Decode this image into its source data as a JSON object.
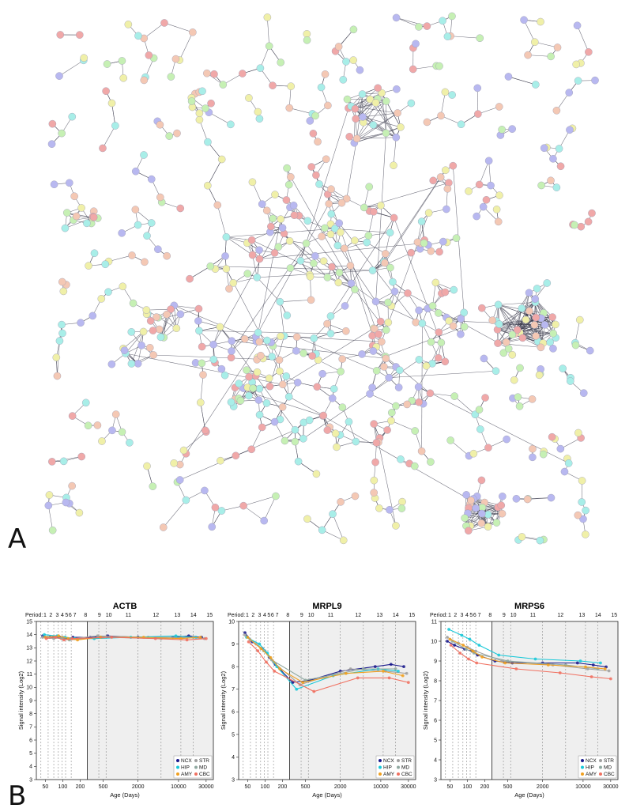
{
  "figure": {
    "panel_a_label": "A",
    "panel_b_label": "B"
  },
  "network": {
    "node_colors": [
      "#b8b8f0",
      "#a8eee8",
      "#c6f0b4",
      "#f0f0a8",
      "#f4c8b4",
      "#f0a8a8",
      "#7ec8f0"
    ]
  },
  "chart_data": [
    {
      "type": "scatter",
      "title": "ACTB",
      "xlabel": "Age (Days)",
      "ylabel": "Signal intensity (Log2)",
      "x_scale": "log",
      "xlim": [
        35,
        40000
      ],
      "ylim": [
        3,
        15
      ],
      "yticks": [
        3,
        4,
        5,
        6,
        7,
        8,
        9,
        10,
        11,
        12,
        13,
        14,
        15
      ],
      "xticks": [
        50,
        100,
        200,
        500,
        2000,
        10000,
        30000
      ],
      "period_label": "Period:",
      "periods": [
        "1",
        "2",
        "3",
        "4",
        "5",
        "6",
        "7",
        "8",
        "9",
        "10",
        "11",
        "12",
        "13",
        "14",
        "15"
      ],
      "legend": [
        "NCX",
        "STR",
        "HIP",
        "MD",
        "AMY",
        "CBC"
      ],
      "series": [
        {
          "name": "NCX",
          "color": "#1a1a8c",
          "x": [
            45,
            60,
            90,
            120,
            150,
            300,
            600,
            2000,
            8000,
            15000,
            25000
          ],
          "y": [
            13.9,
            13.8,
            13.8,
            13.7,
            13.8,
            13.8,
            13.9,
            13.8,
            13.8,
            13.9,
            13.8
          ]
        },
        {
          "name": "STR",
          "color": "#a0a0a0",
          "x": [
            45,
            70,
            100,
            140,
            400,
            3000,
            12000,
            28000
          ],
          "y": [
            13.8,
            13.7,
            13.8,
            13.7,
            13.9,
            13.8,
            13.8,
            13.7
          ]
        },
        {
          "name": "HIP",
          "color": "#18c8d8",
          "x": [
            48,
            80,
            110,
            160,
            350,
            1500,
            9000,
            20000
          ],
          "y": [
            14.0,
            13.9,
            13.8,
            13.7,
            13.7,
            13.8,
            13.9,
            13.8
          ]
        },
        {
          "name": "MD",
          "color": "#8fa8a0",
          "x": [
            55,
            95,
            130,
            500,
            5000,
            18000
          ],
          "y": [
            13.8,
            13.7,
            13.6,
            13.8,
            13.7,
            13.8
          ]
        },
        {
          "name": "AMY",
          "color": "#f0a020",
          "x": [
            50,
            85,
            125,
            180,
            450,
            2500,
            11000,
            24000
          ],
          "y": [
            13.8,
            13.9,
            13.7,
            13.6,
            13.8,
            13.8,
            13.7,
            13.8
          ]
        },
        {
          "name": "CBC",
          "color": "#f07060",
          "x": [
            52,
            75,
            105,
            145,
            700,
            4000,
            14000,
            30000
          ],
          "y": [
            13.7,
            13.8,
            13.6,
            13.7,
            13.8,
            13.7,
            13.6,
            13.7
          ]
        }
      ]
    },
    {
      "type": "scatter",
      "title": "MRPL9",
      "xlabel": "Age (Days)",
      "ylabel": "Signal intensity (Log2)",
      "x_scale": "log",
      "xlim": [
        35,
        40000
      ],
      "ylim": [
        3,
        10
      ],
      "yticks": [
        3,
        4,
        5,
        6,
        7,
        8,
        9,
        10
      ],
      "xticks": [
        50,
        100,
        200,
        500,
        2000,
        10000,
        30000
      ],
      "period_label": "Period:",
      "periods": [
        "1",
        "2",
        "3",
        "4",
        "5",
        "6",
        "7",
        "8",
        "9",
        "10",
        "11",
        "12",
        "13",
        "14",
        "15"
      ],
      "legend": [
        "NCX",
        "STR",
        "HIP",
        "MD",
        "AMY",
        "CBC"
      ],
      "series": [
        {
          "name": "NCX",
          "color": "#1a1a8c",
          "x": [
            45,
            60,
            90,
            120,
            150,
            300,
            600,
            2000,
            8000,
            15000,
            25000
          ],
          "y": [
            9.5,
            9.1,
            8.8,
            8.4,
            8.1,
            7.3,
            7.4,
            7.8,
            8.0,
            8.1,
            8.0
          ]
        },
        {
          "name": "STR",
          "color": "#a0a0a0",
          "x": [
            45,
            70,
            100,
            140,
            400,
            3000,
            12000,
            28000
          ],
          "y": [
            9.4,
            9.0,
            8.7,
            8.2,
            7.2,
            7.9,
            7.8,
            7.7
          ]
        },
        {
          "name": "HIP",
          "color": "#18c8d8",
          "x": [
            48,
            80,
            110,
            160,
            350,
            1500,
            9000,
            20000
          ],
          "y": [
            9.3,
            9.0,
            8.6,
            8.0,
            7.0,
            7.6,
            7.9,
            7.8
          ]
        },
        {
          "name": "MD",
          "color": "#8fa8a0",
          "x": [
            55,
            95,
            130,
            500,
            5000,
            18000
          ],
          "y": [
            9.2,
            8.7,
            8.3,
            7.4,
            7.9,
            7.9
          ]
        },
        {
          "name": "AMY",
          "color": "#f0a020",
          "x": [
            50,
            85,
            125,
            180,
            450,
            2500,
            11000,
            24000
          ],
          "y": [
            9.3,
            8.8,
            8.4,
            7.9,
            7.3,
            7.7,
            7.8,
            7.6
          ]
        },
        {
          "name": "CBC",
          "color": "#f07060",
          "x": [
            52,
            75,
            105,
            145,
            700,
            4000,
            14000,
            30000
          ],
          "y": [
            9.1,
            8.7,
            8.2,
            7.8,
            6.9,
            7.5,
            7.5,
            7.3
          ]
        }
      ]
    },
    {
      "type": "scatter",
      "title": "MRPS6",
      "xlabel": "Age (Days)",
      "ylabel": "Signal intensity (Log2)",
      "x_scale": "log",
      "xlim": [
        35,
        40000
      ],
      "ylim": [
        3,
        11
      ],
      "yticks": [
        3,
        4,
        5,
        6,
        7,
        8,
        9,
        10,
        11
      ],
      "xticks": [
        50,
        100,
        200,
        500,
        2000,
        10000,
        30000
      ],
      "period_label": "Period:",
      "periods": [
        "1",
        "2",
        "3",
        "4",
        "5",
        "6",
        "7",
        "8",
        "9",
        "10",
        "11",
        "12",
        "13",
        "14",
        "15"
      ],
      "legend": [
        "NCX",
        "STR",
        "HIP",
        "MD",
        "AMY",
        "CBC"
      ],
      "series": [
        {
          "name": "NCX",
          "color": "#1a1a8c",
          "x": [
            45,
            60,
            90,
            120,
            150,
            300,
            600,
            2000,
            8000,
            15000,
            25000
          ],
          "y": [
            10.0,
            9.8,
            9.6,
            9.5,
            9.3,
            9.0,
            8.9,
            8.9,
            8.9,
            8.8,
            8.7
          ]
        },
        {
          "name": "STR",
          "color": "#a0a0a0",
          "x": [
            45,
            70,
            100,
            140,
            400,
            3000,
            12000,
            28000
          ],
          "y": [
            10.2,
            9.9,
            9.7,
            9.5,
            9.0,
            8.8,
            8.6,
            8.5
          ]
        },
        {
          "name": "HIP",
          "color": "#18c8d8",
          "x": [
            48,
            80,
            110,
            160,
            350,
            1500,
            9000,
            20000
          ],
          "y": [
            10.6,
            10.3,
            10.1,
            9.8,
            9.3,
            9.1,
            9.0,
            8.9
          ]
        },
        {
          "name": "MD",
          "color": "#8fa8a0",
          "x": [
            55,
            95,
            130,
            500,
            5000,
            18000
          ],
          "y": [
            10.0,
            9.6,
            9.4,
            9.0,
            8.8,
            8.6
          ]
        },
        {
          "name": "AMY",
          "color": "#f0a020",
          "x": [
            50,
            85,
            125,
            180,
            450,
            2500,
            11000,
            24000
          ],
          "y": [
            10.1,
            9.8,
            9.5,
            9.2,
            8.9,
            8.8,
            8.7,
            8.6
          ]
        },
        {
          "name": "CBC",
          "color": "#f07060",
          "x": [
            52,
            75,
            105,
            145,
            700,
            4000,
            14000,
            30000
          ],
          "y": [
            9.8,
            9.4,
            9.1,
            8.9,
            8.6,
            8.4,
            8.2,
            8.1
          ]
        }
      ]
    }
  ]
}
